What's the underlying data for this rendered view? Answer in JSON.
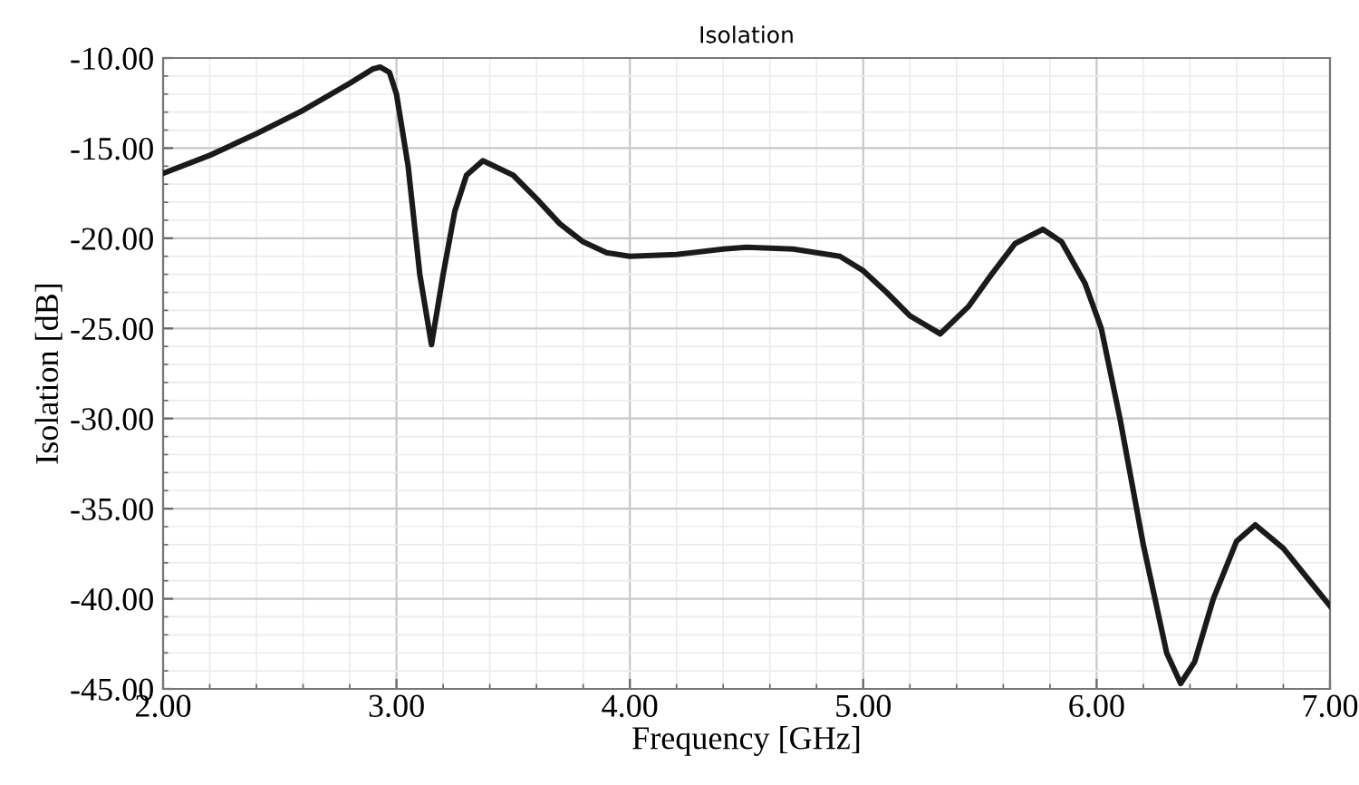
{
  "chart_data": {
    "type": "line",
    "title": "Isolation",
    "xlabel": "Frequency [GHz]",
    "ylabel": "Isolation [dB]",
    "xlim": [
      2,
      7
    ],
    "ylim": [
      -45,
      -10
    ],
    "xticks": [
      {
        "value": 2,
        "label": "2.00"
      },
      {
        "value": 3,
        "label": "3.00"
      },
      {
        "value": 4,
        "label": "4.00"
      },
      {
        "value": 5,
        "label": "5.00"
      },
      {
        "value": 6,
        "label": "6.00"
      },
      {
        "value": 7,
        "label": "7.00"
      }
    ],
    "yticks": [
      {
        "value": -45,
        "label": "-45.00"
      },
      {
        "value": -40,
        "label": "-40.00"
      },
      {
        "value": -35,
        "label": "-35.00"
      },
      {
        "value": -30,
        "label": "-30.00"
      },
      {
        "value": -25,
        "label": "-25.00"
      },
      {
        "value": -20,
        "label": "-20.00"
      },
      {
        "value": -15,
        "label": "-15.00"
      },
      {
        "value": -10,
        "label": "-10.00"
      }
    ],
    "grid": true,
    "marker": "none",
    "line_style": "solid",
    "series": [
      {
        "color": "#1a1a1a",
        "x": [
          2.0,
          2.2,
          2.4,
          2.6,
          2.8,
          2.9,
          2.93,
          2.97,
          3.0,
          3.05,
          3.1,
          3.15,
          3.2,
          3.25,
          3.3,
          3.37,
          3.5,
          3.6,
          3.7,
          3.8,
          3.9,
          4.0,
          4.2,
          4.4,
          4.5,
          4.7,
          4.9,
          5.0,
          5.1,
          5.2,
          5.33,
          5.45,
          5.55,
          5.65,
          5.77,
          5.85,
          5.95,
          6.02,
          6.1,
          6.2,
          6.3,
          6.36,
          6.42,
          6.5,
          6.6,
          6.68,
          6.8,
          6.9,
          7.0
        ],
        "values": [
          -16.4,
          -15.4,
          -14.2,
          -12.9,
          -11.4,
          -10.6,
          -10.5,
          -10.8,
          -12.0,
          -16.0,
          -22.0,
          -25.9,
          -22.0,
          -18.5,
          -16.5,
          -15.7,
          -16.5,
          -17.8,
          -19.2,
          -20.2,
          -20.8,
          -21.0,
          -20.9,
          -20.6,
          -20.5,
          -20.6,
          -21.0,
          -21.8,
          -23.0,
          -24.3,
          -25.3,
          -23.8,
          -22.0,
          -20.3,
          -19.5,
          -20.2,
          -22.5,
          -25.0,
          -30.0,
          -37.0,
          -43.0,
          -44.7,
          -43.5,
          -40.0,
          -36.8,
          -35.9,
          -37.2,
          -38.8,
          -40.4
        ]
      }
    ]
  }
}
